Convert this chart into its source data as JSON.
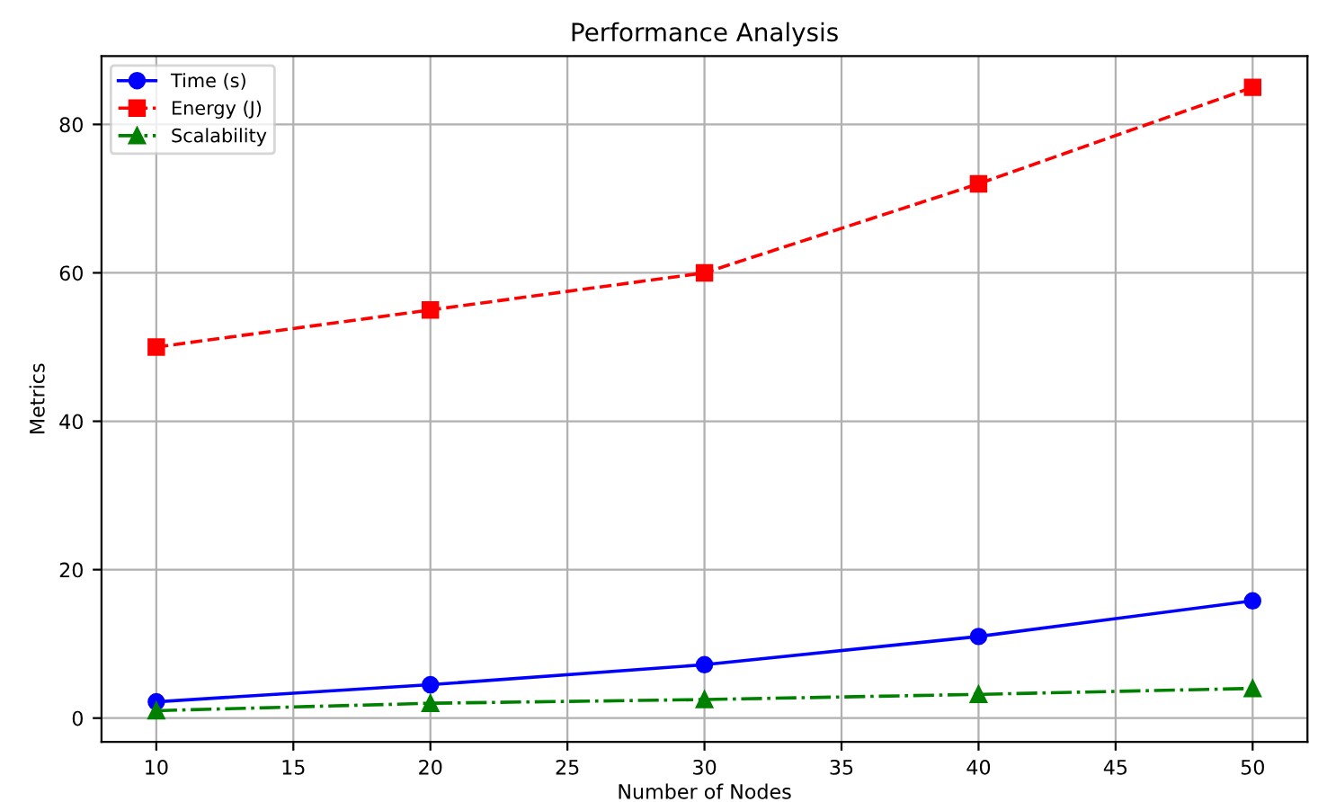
{
  "chart_data": {
    "type": "line",
    "title": "Performance Analysis",
    "xlabel": "Number of Nodes",
    "ylabel": "Metrics",
    "x": [
      10,
      20,
      30,
      40,
      50
    ],
    "series": [
      {
        "name": "Time (s)",
        "color": "#0000ff",
        "values": [
          2.2,
          4.5,
          7.2,
          11,
          15.8
        ],
        "marker": "circle",
        "line_style": "solid"
      },
      {
        "name": "Energy (J)",
        "color": "#ff0000",
        "values": [
          50,
          55,
          60,
          72,
          85
        ],
        "marker": "square",
        "line_style": "dashed"
      },
      {
        "name": "Scalability",
        "color": "#008000",
        "values": [
          1,
          2,
          2.5,
          3.2,
          4
        ],
        "marker": "triangle",
        "line_style": "dashdot"
      }
    ],
    "xlim": [
      8,
      52
    ],
    "xticks": [
      10,
      15,
      20,
      25,
      30,
      35,
      40,
      45,
      50
    ],
    "ylim": [
      -3.2,
      89.2
    ],
    "yticks": [
      0,
      20,
      40,
      60,
      80
    ],
    "grid": true,
    "legend": "top left"
  }
}
